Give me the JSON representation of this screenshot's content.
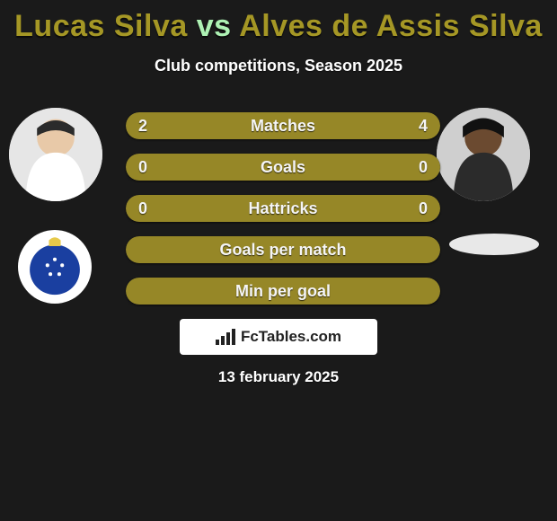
{
  "title": {
    "p1": "Lucas Silva",
    "vs": "vs",
    "p2": "Alves de Assis Silva"
  },
  "title_colors": {
    "p1": "#a59725",
    "vs": "#aef2b4",
    "p2": "#a59725"
  },
  "subtitle": "Club competitions, Season 2025",
  "bar_color": "#968727",
  "bg_color": "#2c2c2c",
  "rows": [
    {
      "label": "Matches",
      "left": "2",
      "right": "4",
      "lw": 33,
      "rw": 67
    },
    {
      "label": "Goals",
      "left": "0",
      "right": "0",
      "lw": 100,
      "rw": 0
    },
    {
      "label": "Hattricks",
      "left": "0",
      "right": "0",
      "lw": 100,
      "rw": 0
    },
    {
      "label": "Goals per match",
      "left": "",
      "right": "",
      "lw": 100,
      "rw": 0
    },
    {
      "label": "Min per goal",
      "left": "",
      "right": "",
      "lw": 100,
      "rw": 0
    }
  ],
  "club_left_inner_color": "#1a3fa0",
  "brand": "FcTables.com",
  "date": "13 february 2025",
  "avatar_skin": {
    "left": "#e8c9a8",
    "right": "#6b4a30"
  }
}
